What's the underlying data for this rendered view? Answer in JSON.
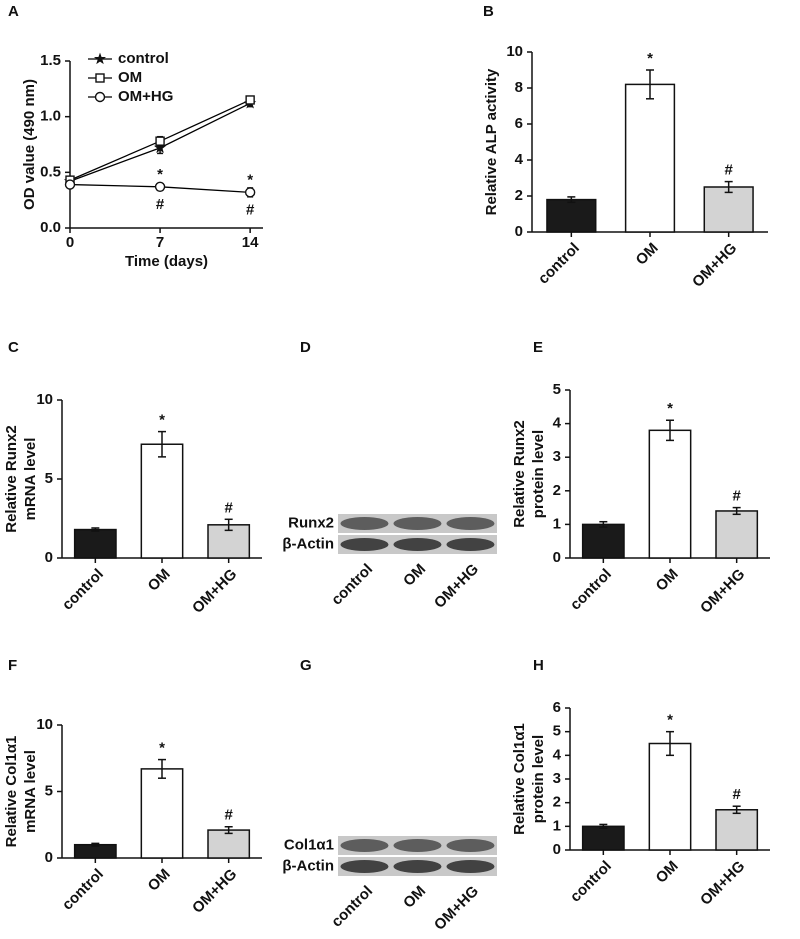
{
  "chart_data": [
    {
      "type": "line",
      "label": "A",
      "ylabel": [
        "OD value (490 nm)"
      ],
      "xlabel": "Time (days)",
      "x": [
        0,
        7,
        14
      ],
      "xlim": [
        0,
        15
      ],
      "xticks": [
        0,
        7,
        14
      ],
      "ylim": [
        0,
        1.5
      ],
      "yticks": [
        {
          "value": 0,
          "label": "0.0"
        },
        0.5,
        {
          "value": 1,
          "label": "1.0"
        },
        1.5
      ],
      "legend": "upper left",
      "series": [
        {
          "name": "control",
          "color": "#000000",
          "marker": "star",
          "values": [
            0.42,
            0.72,
            1.12
          ],
          "errors": [
            0.03,
            0.05,
            0.03
          ]
        },
        {
          "name": "OM",
          "color": "#000000",
          "marker": "square",
          "values": [
            0.43,
            0.78,
            1.15
          ],
          "errors": [
            0.02,
            0.04,
            0.02
          ]
        },
        {
          "name": "OM+HG",
          "color": "#000000",
          "marker": "circle",
          "values": [
            0.39,
            0.37,
            0.32
          ],
          "errors": [
            0.02,
            0.03,
            0.04
          ]
        }
      ],
      "annotations": [
        {
          "text": "*",
          "x": 7
        },
        {
          "text": "#",
          "x": 7
        },
        {
          "text": "*",
          "x": 14
        },
        {
          "text": "#",
          "x": 14
        }
      ]
    },
    {
      "type": "bar",
      "label": "B",
      "ylabel": [
        "Relative ALP activity"
      ],
      "categories": [
        "control",
        "OM",
        "OM+HG"
      ],
      "values": [
        1.8,
        8.2,
        2.5
      ],
      "errors": [
        0.15,
        0.8,
        0.3
      ],
      "markers": [
        null,
        "*",
        "#"
      ],
      "colors": [
        "#1a1a1a",
        "#ffffff",
        "#d3d3d3"
      ],
      "ylim": [
        0,
        10
      ],
      "yticks": [
        0,
        2,
        4,
        6,
        8,
        10
      ]
    },
    {
      "type": "bar",
      "label": "C",
      "ylabel": [
        "Relative Runx2",
        "mRNA level"
      ],
      "categories": [
        "control",
        "OM",
        "OM+HG"
      ],
      "values": [
        1.8,
        7.2,
        2.1
      ],
      "errors": [
        0.1,
        0.8,
        0.35
      ],
      "markers": [
        null,
        "*",
        "#"
      ],
      "colors": [
        "#1a1a1a",
        "#ffffff",
        "#d3d3d3"
      ],
      "ylim": [
        0,
        10
      ],
      "yticks": [
        0,
        5,
        10
      ]
    },
    {
      "type": "blot",
      "label": "D",
      "rows": [
        "Runx2",
        "β-Actin"
      ],
      "categories": [
        "control",
        "OM",
        "OM+HG"
      ]
    },
    {
      "type": "bar",
      "label": "E",
      "ylabel": [
        "Relative Runx2",
        "protein level"
      ],
      "categories": [
        "control",
        "OM",
        "OM+HG"
      ],
      "values": [
        1.0,
        3.8,
        1.4
      ],
      "errors": [
        0.08,
        0.3,
        0.1
      ],
      "markers": [
        null,
        "*",
        "#"
      ],
      "colors": [
        "#1a1a1a",
        "#ffffff",
        "#d3d3d3"
      ],
      "ylim": [
        0,
        5
      ],
      "yticks": [
        0,
        1,
        2,
        3,
        4,
        5
      ]
    },
    {
      "type": "bar",
      "label": "F",
      "ylabel": [
        "Relative Col1α1",
        "mRNA level"
      ],
      "categories": [
        "control",
        "OM",
        "OM+HG"
      ],
      "values": [
        1.0,
        6.7,
        2.1
      ],
      "errors": [
        0.1,
        0.7,
        0.25
      ],
      "markers": [
        null,
        "*",
        "#"
      ],
      "colors": [
        "#1a1a1a",
        "#ffffff",
        "#d3d3d3"
      ],
      "ylim": [
        0,
        10
      ],
      "yticks": [
        0,
        5,
        10
      ]
    },
    {
      "type": "blot",
      "label": "G",
      "rows": [
        "Col1α1",
        "β-Actin"
      ],
      "categories": [
        "control",
        "OM",
        "OM+HG"
      ]
    },
    {
      "type": "bar",
      "label": "H",
      "ylabel": [
        "Relative Col1α1",
        "protein level"
      ],
      "categories": [
        "control",
        "OM",
        "OM+HG"
      ],
      "values": [
        1.0,
        4.5,
        1.7
      ],
      "errors": [
        0.08,
        0.5,
        0.15
      ],
      "markers": [
        null,
        "*",
        "#"
      ],
      "colors": [
        "#1a1a1a",
        "#ffffff",
        "#d3d3d3"
      ],
      "ylim": [
        0,
        6
      ],
      "yticks": [
        0,
        1,
        2,
        3,
        4,
        5,
        6
      ]
    }
  ]
}
